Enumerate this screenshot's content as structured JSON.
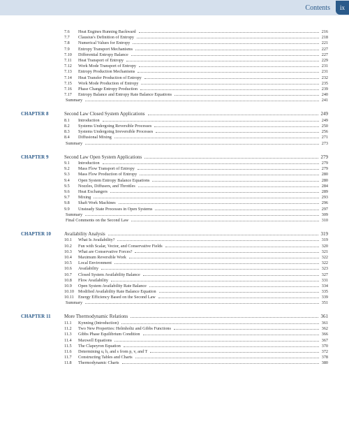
{
  "header": {
    "label": "Contents",
    "page_marker": "ix"
  },
  "section_continuation": [
    {
      "num": "7.6",
      "title": "Heat Engines Running Backward",
      "page": "216"
    },
    {
      "num": "7.7",
      "title": "Clausius's Definition of Entropy",
      "page": "218"
    },
    {
      "num": "7.8",
      "title": "Numerical Values for Entropy",
      "page": "221"
    },
    {
      "num": "7.9",
      "title": "Entropy Transport Mechanisms",
      "page": "227"
    },
    {
      "num": "7.10",
      "title": "Differential Entropy Balance",
      "page": "227"
    },
    {
      "num": "7.11",
      "title": "Heat Transport of Entropy",
      "page": "229"
    },
    {
      "num": "7.12",
      "title": "Work Mode Transport of Entropy",
      "page": "231"
    },
    {
      "num": "7.13",
      "title": "Entropy Production Mechanisms",
      "page": "231"
    },
    {
      "num": "7.14",
      "title": "Heat Transfer Production of Entropy",
      "page": "232"
    },
    {
      "num": "7.15",
      "title": "Work Mode Production of Entropy",
      "page": "235"
    },
    {
      "num": "7.16",
      "title": "Phase Change Entropy Production",
      "page": "239"
    },
    {
      "num": "7.17",
      "title": "Entropy Balance and Entropy Rate Balance Equations",
      "page": "240"
    },
    {
      "num": "",
      "title": "Summary",
      "page": "241"
    }
  ],
  "chapters": [
    {
      "label": "CHAPTER 8",
      "title": "Second Law Closed System Applications",
      "page": "249",
      "entries": [
        {
          "num": "8.1",
          "title": "Introduction",
          "page": "249"
        },
        {
          "num": "8.2",
          "title": "Systems Undergoing Reversible Processes",
          "page": "250"
        },
        {
          "num": "8.3",
          "title": "Systems Undergoing Irreversible Processes",
          "page": "256"
        },
        {
          "num": "8.4",
          "title": "Diffusional Mixing",
          "page": "271"
        },
        {
          "num": "",
          "title": "Summary",
          "page": "273"
        }
      ]
    },
    {
      "label": "CHAPTER 9",
      "title": "Second Law Open System Applications",
      "page": "279",
      "entries": [
        {
          "num": "9.1",
          "title": "Introduction",
          "page": "279"
        },
        {
          "num": "9.2",
          "title": "Mass Flow Transport of Entropy",
          "page": "279"
        },
        {
          "num": "9.3",
          "title": "Mass Flow Production of Entropy",
          "page": "280"
        },
        {
          "num": "9.4",
          "title": "Open System Entropy Balance Equations",
          "page": "280"
        },
        {
          "num": "9.5",
          "title": "Nozzles, Diffusers, and Throttles",
          "page": "284"
        },
        {
          "num": "9.6",
          "title": "Heat Exchangers",
          "page": "289"
        },
        {
          "num": "9.7",
          "title": "Mixing",
          "page": "293"
        },
        {
          "num": "9.8",
          "title": "Shaft Work Machines",
          "page": "296"
        },
        {
          "num": "9.9",
          "title": "Unsteady State Processes in Open Systems",
          "page": "297"
        },
        {
          "num": "",
          "title": "Summary",
          "page": "309"
        },
        {
          "num": "",
          "title": "Final Comments on the Second Law",
          "page": "310"
        }
      ]
    },
    {
      "label": "CHAPTER 10",
      "title": "Availability Analysis",
      "page": "319",
      "entries": [
        {
          "num": "10.1",
          "title": "What Is Availability?",
          "page": "319"
        },
        {
          "num": "10.2",
          "title": "Fun with Scalar, Vector, and Conservative Fields",
          "page": "320"
        },
        {
          "num": "10.3",
          "title": "What are Conservative Forces?",
          "page": "321"
        },
        {
          "num": "10.4",
          "title": "Maximum Reversible Work",
          "page": "322"
        },
        {
          "num": "10.5",
          "title": "Local Environment",
          "page": "322"
        },
        {
          "num": "10.6",
          "title": "Availability",
          "page": "323"
        },
        {
          "num": "10.7",
          "title": "Closed System Availability Balance",
          "page": "327"
        },
        {
          "num": "10.8",
          "title": "Flow Availability",
          "page": "331"
        },
        {
          "num": "10.9",
          "title": "Open System Availability Rate Balance",
          "page": "334"
        },
        {
          "num": "10.10",
          "title": "Modified Availability Rate Balance Equation",
          "page": "335"
        },
        {
          "num": "10.11",
          "title": "Energy Efficiency Based on the Second Law",
          "page": "339"
        },
        {
          "num": "",
          "title": "Summary",
          "page": "351"
        }
      ]
    },
    {
      "label": "CHAPTER 11",
      "title": "More Thermodynamic Relations",
      "page": "361",
      "entries": [
        {
          "num": "11.1",
          "title": "Kynning (Introduction)",
          "page": "361"
        },
        {
          "num": "11.2",
          "title": "Two New Properties: Helmholtz and Gibbs Functions",
          "page": "362"
        },
        {
          "num": "11.3",
          "title": "Gibbs Phase Equilibrium Condition",
          "page": "366"
        },
        {
          "num": "11.4",
          "title": "Maxwell Equations",
          "page": "367"
        },
        {
          "num": "11.5",
          "title": "The Clapeyron Equation",
          "page": "370"
        },
        {
          "num": "11.6",
          "title": "Determining u, h, and s from p, v, and T",
          "page": "372"
        },
        {
          "num": "11.7",
          "title": "Constructing Tables and Charts",
          "page": "378"
        },
        {
          "num": "11.8",
          "title": "Thermodynamic Charts",
          "page": "380"
        }
      ]
    }
  ]
}
